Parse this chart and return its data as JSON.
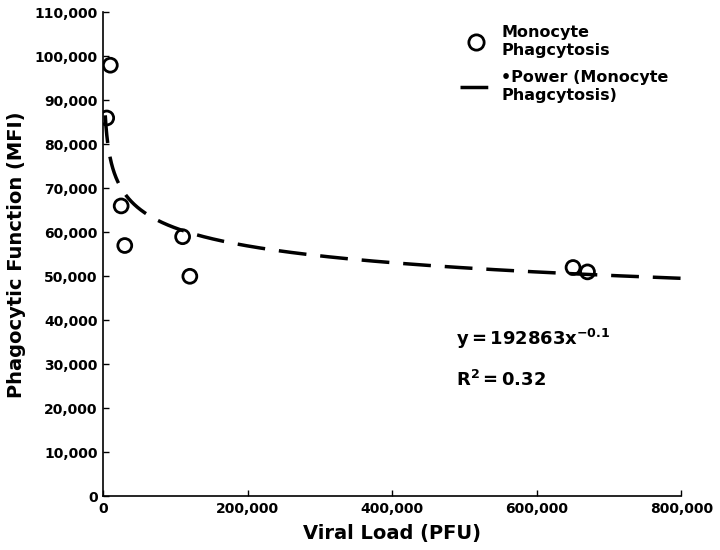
{
  "scatter_x": [
    5000,
    10000,
    25000,
    30000,
    110000,
    120000,
    650000,
    670000
  ],
  "scatter_y": [
    86000,
    98000,
    66000,
    57000,
    59000,
    50000,
    52000,
    51000
  ],
  "power_coeff": 192863,
  "power_exp": -0.1,
  "r_squared": 0.32,
  "xlim": [
    0,
    800000
  ],
  "ylim": [
    0,
    110000
  ],
  "xticks": [
    0,
    200000,
    400000,
    600000,
    800000
  ],
  "yticks": [
    0,
    10000,
    20000,
    30000,
    40000,
    50000,
    60000,
    70000,
    80000,
    90000,
    100000,
    110000
  ],
  "xlabel": "Viral Load (PFU)",
  "ylabel": "Phagocytic Function (MFI)",
  "background_color": "#ffffff",
  "scatter_color": "#000000",
  "curve_color": "#000000",
  "curve_start_x": 3000,
  "eq_x": 0.61,
  "eq_y": 0.3,
  "r2_x": 0.61,
  "r2_y": 0.22,
  "legend_scatter_label": "Monocyte\nPhagcytosis",
  "legend_curve_label": "•Power (Monocyte\nPhagcytosis)"
}
